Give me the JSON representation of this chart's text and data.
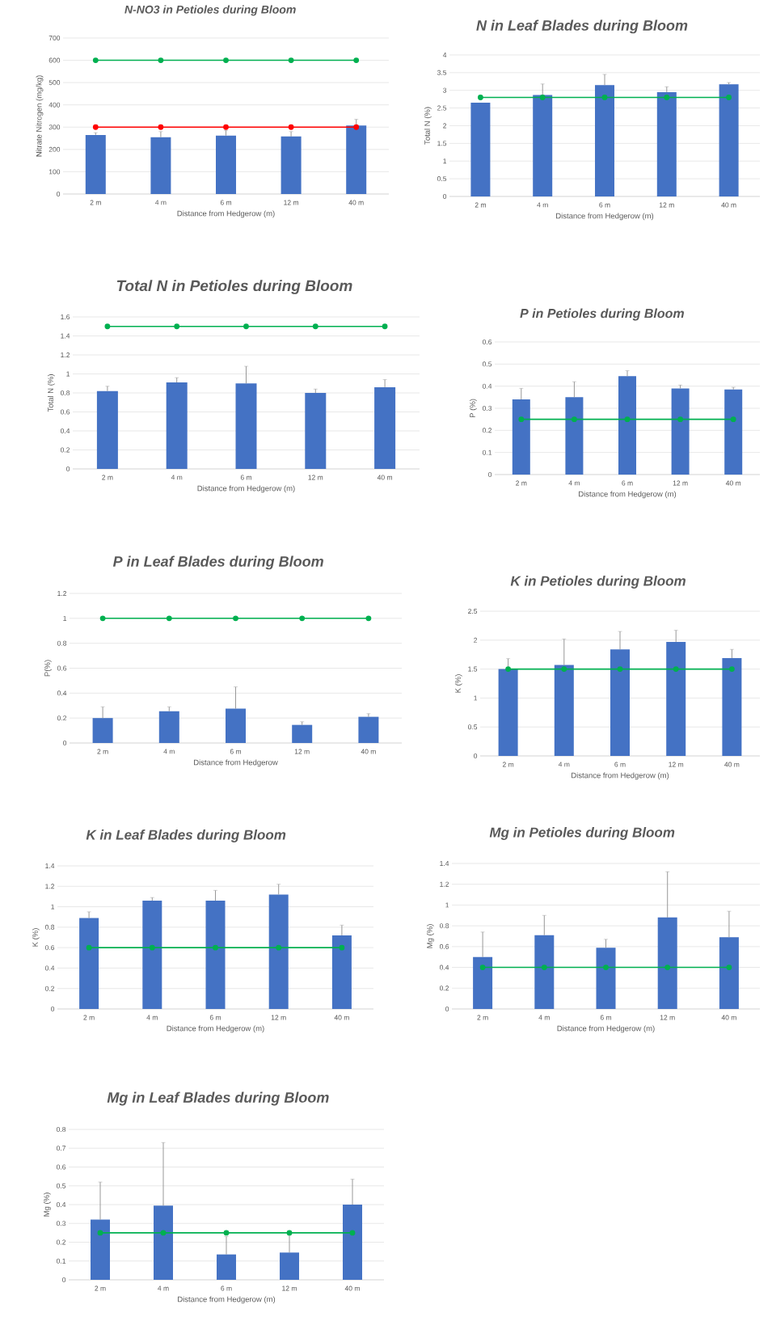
{
  "chart_data": [
    {
      "type": "bar",
      "title": "N-NO3 in Petioles during Bloom",
      "xlabel": "Distance from Hedgerow (m)",
      "ylabel": "Nitrate Nitrogen (mg/kg)",
      "categories": [
        "2 m",
        "4 m",
        "6 m",
        "12 m",
        "40 m"
      ],
      "ylim": [
        0,
        700
      ],
      "yticks": [
        0,
        100,
        200,
        300,
        400,
        500,
        600,
        700
      ],
      "grid": "y",
      "series": [
        {
          "type": "bar",
          "color": "#4472c4",
          "values": [
            265,
            255,
            262,
            258,
            307
          ],
          "errors": [
            [
              265,
              275
            ],
            [
              255,
              280
            ],
            [
              262,
              285
            ],
            [
              258,
              280
            ],
            [
              307,
              335
            ]
          ]
        },
        {
          "type": "line",
          "color": "#00b050",
          "marker": "circle",
          "values": [
            600,
            600,
            600,
            600,
            600
          ]
        },
        {
          "type": "line",
          "color": "#ff0000",
          "marker": "circle",
          "values": [
            300,
            300,
            300,
            300,
            300
          ]
        }
      ]
    },
    {
      "type": "bar",
      "title": "N in Leaf Blades during Bloom",
      "xlabel": "Distance from Hedgerow (m)",
      "ylabel": "Total N (%)",
      "categories": [
        "2 m",
        "4 m",
        "6 m",
        "12 m",
        "40 m"
      ],
      "ylim": [
        0,
        4
      ],
      "yticks": [
        0,
        0.5,
        1,
        1.5,
        2,
        2.5,
        3,
        3.5,
        4
      ],
      "grid": "y",
      "series": [
        {
          "type": "bar",
          "color": "#4472c4",
          "values": [
            2.65,
            2.87,
            3.15,
            2.95,
            3.17
          ],
          "errors": [
            null,
            [
              2.87,
              3.18
            ],
            [
              3.15,
              3.45
            ],
            [
              2.95,
              3.1
            ],
            [
              3.17,
              3.22
            ]
          ]
        },
        {
          "type": "line",
          "color": "#00b050",
          "marker": "circle",
          "values": [
            2.8,
            2.8,
            2.8,
            2.8,
            2.8
          ]
        }
      ]
    },
    {
      "type": "bar",
      "title": "Total N in Petioles during Bloom",
      "xlabel": "Distance from Hedgerow (m)",
      "ylabel": "Total N (%)",
      "categories": [
        "2 m",
        "4 m",
        "6 m",
        "12 m",
        "40 m"
      ],
      "ylim": [
        0,
        1.6
      ],
      "yticks": [
        0,
        0.2,
        0.4,
        0.6,
        0.8,
        1,
        1.2,
        1.4,
        1.6
      ],
      "grid": "y",
      "series": [
        {
          "type": "bar",
          "color": "#4472c4",
          "values": [
            0.82,
            0.91,
            0.9,
            0.8,
            0.86
          ],
          "errors": [
            [
              0.82,
              0.87
            ],
            [
              0.91,
              0.96
            ],
            [
              0.9,
              1.08
            ],
            [
              0.8,
              0.84
            ],
            [
              0.86,
              0.94
            ]
          ]
        },
        {
          "type": "line",
          "color": "#00b050",
          "marker": "circle",
          "values": [
            1.5,
            1.5,
            1.5,
            1.5,
            1.5
          ]
        }
      ]
    },
    {
      "type": "bar",
      "title": "P in Petioles during Bloom",
      "xlabel": "Distance from Hedgerow (m)",
      "ylabel": "P (%)",
      "categories": [
        "2 m",
        "4 m",
        "6 m",
        "12 m",
        "40 m"
      ],
      "ylim": [
        0,
        0.6
      ],
      "yticks": [
        0,
        0.1,
        0.2,
        0.3,
        0.4,
        0.5,
        0.6
      ],
      "grid": "y",
      "series": [
        {
          "type": "bar",
          "color": "#4472c4",
          "values": [
            0.34,
            0.35,
            0.445,
            0.39,
            0.385
          ],
          "errors": [
            [
              0.34,
              0.39
            ],
            [
              0.35,
              0.42
            ],
            [
              0.445,
              0.47
            ],
            [
              0.39,
              0.405
            ],
            [
              0.385,
              0.395
            ]
          ]
        },
        {
          "type": "line",
          "color": "#00b050",
          "marker": "circle",
          "values": [
            0.25,
            0.25,
            0.25,
            0.25,
            0.25
          ]
        }
      ]
    },
    {
      "type": "bar",
      "title": "P in Leaf Blades during Bloom",
      "xlabel": "Distance from Hedgerow",
      "ylabel": "P(%)",
      "categories": [
        "2 m",
        "4 m",
        "6 m",
        "12 m",
        "40 m"
      ],
      "ylim": [
        0,
        1.2
      ],
      "yticks": [
        0,
        0.2,
        0.4,
        0.6,
        0.8,
        1,
        1.2
      ],
      "grid": "y",
      "series": [
        {
          "type": "bar",
          "color": "#4472c4",
          "values": [
            0.2,
            0.255,
            0.275,
            0.145,
            0.21
          ],
          "errors": [
            [
              0.2,
              0.29
            ],
            [
              0.255,
              0.29
            ],
            [
              0.275,
              0.45
            ],
            [
              0.145,
              0.17
            ],
            [
              0.21,
              0.235
            ]
          ]
        },
        {
          "type": "line",
          "color": "#00b050",
          "marker": "circle",
          "values": [
            1,
            1,
            1,
            1,
            1
          ]
        }
      ]
    },
    {
      "type": "bar",
      "title": "K in Petioles during Bloom",
      "xlabel": "Distance from Hedgerow (m)",
      "ylabel": "K (%)",
      "categories": [
        "2 m",
        "4 m",
        "6 m",
        "12 m",
        "40 m"
      ],
      "ylim": [
        0,
        2.5
      ],
      "yticks": [
        0,
        0.5,
        1,
        1.5,
        2,
        2.5
      ],
      "grid": "y",
      "series": [
        {
          "type": "bar",
          "color": "#4472c4",
          "values": [
            1.5,
            1.57,
            1.84,
            1.97,
            1.69
          ],
          "errors": [
            [
              1.5,
              1.68
            ],
            [
              1.57,
              2.02
            ],
            [
              1.84,
              2.15
            ],
            [
              1.97,
              2.17
            ],
            [
              1.69,
              1.84
            ]
          ]
        },
        {
          "type": "line",
          "color": "#00b050",
          "marker": "circle",
          "values": [
            1.5,
            1.5,
            1.5,
            1.5,
            1.5
          ]
        }
      ]
    },
    {
      "type": "bar",
      "title": "K in Leaf Blades during Bloom",
      "xlabel": "Distance from Hedgerow (m)",
      "ylabel": "K (%)",
      "categories": [
        "2 m",
        "4 m",
        "6 m",
        "12 m",
        "40 m"
      ],
      "ylim": [
        0,
        1.4
      ],
      "yticks": [
        0,
        0.2,
        0.4,
        0.6,
        0.8,
        1,
        1.2,
        1.4
      ],
      "grid": "y",
      "series": [
        {
          "type": "bar",
          "color": "#4472c4",
          "values": [
            0.89,
            1.06,
            1.06,
            1.12,
            0.72
          ],
          "errors": [
            [
              0.89,
              0.95
            ],
            [
              1.06,
              1.09
            ],
            [
              1.06,
              1.16
            ],
            [
              1.12,
              1.22
            ],
            [
              0.72,
              0.82
            ]
          ]
        },
        {
          "type": "line",
          "color": "#00b050",
          "marker": "circle",
          "values": [
            0.6,
            0.6,
            0.6,
            0.6,
            0.6
          ]
        }
      ]
    },
    {
      "type": "bar",
      "title": "Mg in Petioles during Bloom",
      "xlabel": "Distance from Hedgerow (m)",
      "ylabel": "Mg (%)",
      "categories": [
        "2 m",
        "4 m",
        "6 m",
        "12 m",
        "40 m"
      ],
      "ylim": [
        0,
        1.4
      ],
      "yticks": [
        0,
        0.2,
        0.4,
        0.6,
        0.8,
        1,
        1.2,
        1.4
      ],
      "grid": "y",
      "series": [
        {
          "type": "bar",
          "color": "#4472c4",
          "values": [
            0.5,
            0.71,
            0.59,
            0.88,
            0.69
          ],
          "errors": [
            [
              0.5,
              0.74
            ],
            [
              0.71,
              0.9
            ],
            [
              0.59,
              0.67
            ],
            [
              0.88,
              1.32
            ],
            [
              0.69,
              0.94
            ]
          ]
        },
        {
          "type": "line",
          "color": "#00b050",
          "marker": "circle",
          "values": [
            0.4,
            0.4,
            0.4,
            0.4,
            0.4
          ]
        }
      ]
    },
    {
      "type": "bar",
      "title": "Mg in Leaf Blades during Bloom",
      "xlabel": "Distance from Hedgerow (m)",
      "ylabel": "Mg (%)",
      "categories": [
        "2 m",
        "4 m",
        "6 m",
        "12 m",
        "40 m"
      ],
      "ylim": [
        0,
        0.8
      ],
      "yticks": [
        0,
        0.1,
        0.2,
        0.3,
        0.4,
        0.5,
        0.6,
        0.7,
        0.8
      ],
      "grid": "y",
      "series": [
        {
          "type": "bar",
          "color": "#4472c4",
          "values": [
            0.32,
            0.395,
            0.135,
            0.145,
            0.4
          ],
          "errors": [
            [
              0.32,
              0.52
            ],
            [
              0.395,
              0.73
            ],
            [
              0.135,
              0.23
            ],
            [
              0.145,
              0.24
            ],
            [
              0.4,
              0.535
            ]
          ]
        },
        {
          "type": "line",
          "color": "#00b050",
          "marker": "circle",
          "values": [
            0.25,
            0.25,
            0.25,
            0.25,
            0.25
          ]
        }
      ]
    }
  ]
}
